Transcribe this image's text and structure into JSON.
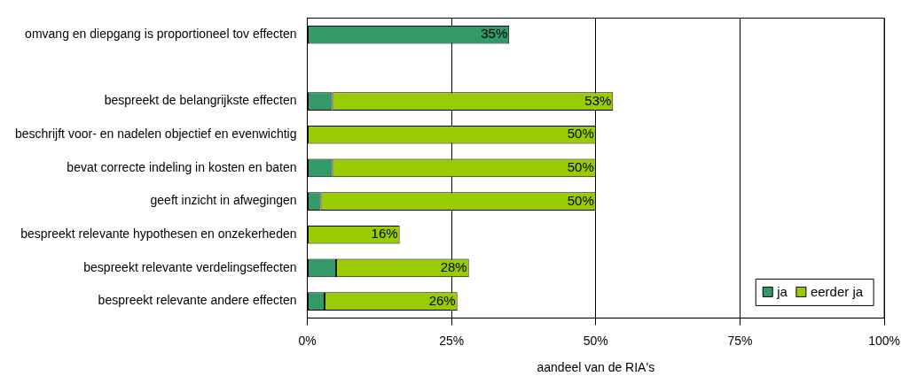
{
  "chart_data": {
    "type": "bar",
    "orientation": "horizontal",
    "stacked": true,
    "categories": [
      "omvang en diepgang is proportioneel tov effecten",
      null,
      "bespreekt de belangrijkste effecten",
      "beschrijft voor- en nadelen objectief en evenwichtig",
      "bevat correcte indeling in kosten en baten",
      "geeft inzicht in afwegingen",
      "bespreekt relevante hypothesen en onzekerheden",
      "bespreekt relevante verdelingseffecten",
      "bespreekt relevante andere effecten"
    ],
    "series": [
      {
        "name": "ja",
        "color": "#339966",
        "values": [
          35,
          null,
          4.3,
          0,
          4.3,
          2.3,
          0,
          5,
          3
        ]
      },
      {
        "name": "eerder ja",
        "color": "#99cc00",
        "values": [
          0,
          null,
          48.7,
          50,
          45.7,
          47.7,
          16,
          23,
          23
        ]
      }
    ],
    "totals": [
      "35%",
      null,
      "53%",
      "50%",
      "50%",
      "50%",
      "16%",
      "28%",
      "26%"
    ],
    "xlabel": "aandeel van de RIA's",
    "xlim": [
      0,
      100
    ],
    "xticks": [
      {
        "value": 0,
        "label": "0%"
      },
      {
        "value": 25,
        "label": "25%"
      },
      {
        "value": 50,
        "label": "50%"
      },
      {
        "value": 75,
        "label": "75%"
      },
      {
        "value": 100,
        "label": "100%"
      }
    ],
    "grid": "x",
    "legend": "bottom right"
  }
}
